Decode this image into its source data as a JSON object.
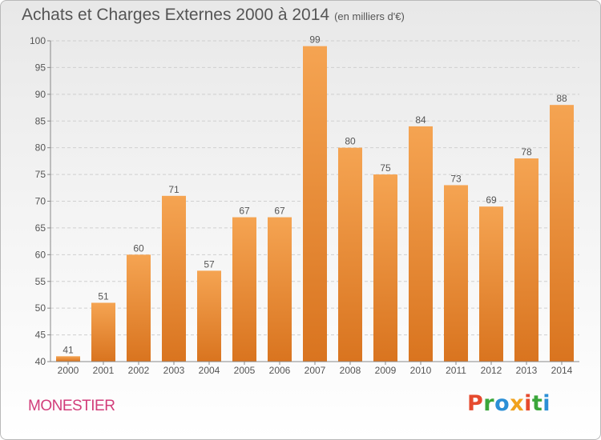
{
  "header": {
    "title": "Achats et Charges Externes 2000 à 2014",
    "subtitle": "(en milliers d'€)"
  },
  "footer": {
    "location": "MONESTIER",
    "brand": "Proxiti",
    "brand_colors": [
      "#e64a2e",
      "#3aa63a",
      "#2b8fd6",
      "#f0a21e",
      "#e64a2e",
      "#3aa63a",
      "#2b8fd6"
    ]
  },
  "chart_data": {
    "type": "bar",
    "categories": [
      "2000",
      "2001",
      "2002",
      "2003",
      "2004",
      "2005",
      "2006",
      "2007",
      "2008",
      "2009",
      "2010",
      "2011",
      "2012",
      "2013",
      "2014"
    ],
    "values": [
      41,
      51,
      60,
      71,
      57,
      67,
      67,
      99,
      80,
      75,
      84,
      73,
      69,
      78,
      88
    ],
    "data_labels": [
      "41",
      "51",
      "60",
      "71",
      "57",
      "67",
      "67",
      "99",
      "80",
      "75",
      "84",
      "73",
      "69",
      "78",
      "88"
    ],
    "y_ticks": [
      40,
      45,
      50,
      55,
      60,
      65,
      70,
      75,
      80,
      85,
      90,
      95,
      100
    ],
    "ylim": [
      40,
      100
    ],
    "grid": true,
    "bar_color_top": "#f5a452",
    "bar_color_bottom": "#d9741f"
  }
}
